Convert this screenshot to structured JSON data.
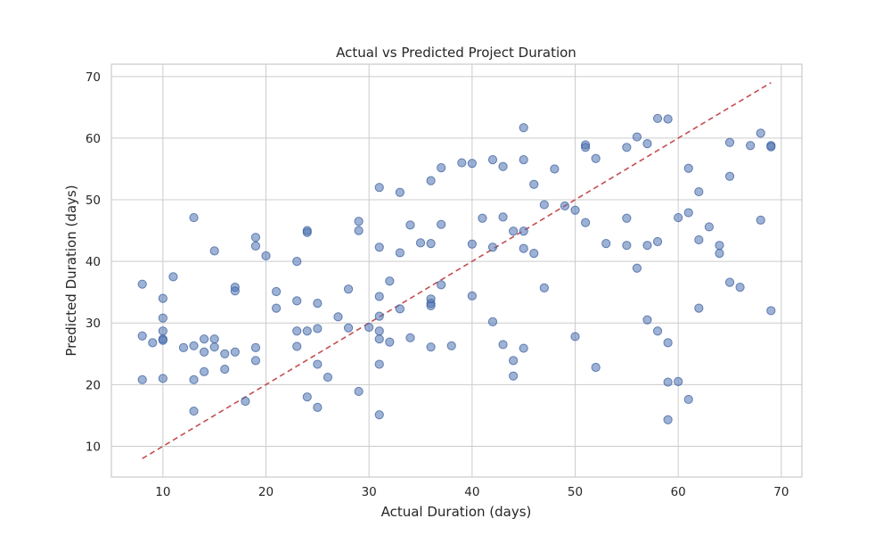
{
  "chart_data": {
    "type": "scatter",
    "title": "Actual vs Predicted Project Duration",
    "xlabel": "Actual Duration (days)",
    "ylabel": "Predicted Duration (days)",
    "xlim": [
      5,
      72
    ],
    "ylim": [
      5,
      72
    ],
    "xticks": [
      10,
      20,
      30,
      40,
      50,
      60,
      70
    ],
    "yticks": [
      10,
      20,
      30,
      40,
      50,
      60,
      70
    ],
    "grid": true,
    "colors": {
      "points": "#4c72b0",
      "reference_line": "#c44e52"
    },
    "reference_line": {
      "x": [
        8,
        69
      ],
      "y": [
        8,
        69
      ]
    },
    "points": [
      [
        8,
        36.3
      ],
      [
        8,
        27.9
      ],
      [
        8,
        20.8
      ],
      [
        9,
        26.8
      ],
      [
        10,
        34.0
      ],
      [
        10,
        30.8
      ],
      [
        10,
        28.7
      ],
      [
        10,
        27.4
      ],
      [
        10,
        27.2
      ],
      [
        10,
        21.0
      ],
      [
        11,
        37.5
      ],
      [
        12,
        26.0
      ],
      [
        13,
        47.1
      ],
      [
        13,
        26.3
      ],
      [
        13,
        20.8
      ],
      [
        13,
        15.7
      ],
      [
        14,
        27.4
      ],
      [
        14,
        25.3
      ],
      [
        14,
        22.1
      ],
      [
        15,
        41.7
      ],
      [
        15,
        27.4
      ],
      [
        15,
        26.1
      ],
      [
        16,
        25.0
      ],
      [
        16,
        22.5
      ],
      [
        17,
        35.8
      ],
      [
        17,
        35.2
      ],
      [
        17,
        25.3
      ],
      [
        18,
        17.3
      ],
      [
        19,
        43.9
      ],
      [
        19,
        42.5
      ],
      [
        19,
        26.0
      ],
      [
        19,
        23.9
      ],
      [
        20,
        40.9
      ],
      [
        21,
        35.1
      ],
      [
        21,
        32.4
      ],
      [
        23,
        40.0
      ],
      [
        23,
        33.6
      ],
      [
        23,
        28.7
      ],
      [
        23,
        26.2
      ],
      [
        24,
        45.0
      ],
      [
        24,
        44.7
      ],
      [
        24,
        28.7
      ],
      [
        24,
        18.0
      ],
      [
        25,
        33.2
      ],
      [
        25,
        29.1
      ],
      [
        25,
        23.3
      ],
      [
        25,
        16.3
      ],
      [
        26,
        21.2
      ],
      [
        27,
        31.0
      ],
      [
        28,
        35.5
      ],
      [
        28,
        29.2
      ],
      [
        29,
        46.5
      ],
      [
        29,
        45.0
      ],
      [
        29,
        18.9
      ],
      [
        30,
        29.3
      ],
      [
        31,
        52.0
      ],
      [
        31,
        42.3
      ],
      [
        31,
        34.3
      ],
      [
        31,
        31.1
      ],
      [
        31,
        28.7
      ],
      [
        31,
        27.4
      ],
      [
        31,
        23.3
      ],
      [
        31,
        15.1
      ],
      [
        32,
        36.8
      ],
      [
        32,
        26.9
      ],
      [
        33,
        51.2
      ],
      [
        33,
        41.4
      ],
      [
        33,
        32.3
      ],
      [
        34,
        45.9
      ],
      [
        34,
        27.6
      ],
      [
        35,
        43.0
      ],
      [
        36,
        53.1
      ],
      [
        36,
        42.9
      ],
      [
        36,
        33.9
      ],
      [
        36,
        33.2
      ],
      [
        36,
        32.8
      ],
      [
        36,
        26.1
      ],
      [
        37,
        55.2
      ],
      [
        37,
        46.0
      ],
      [
        37,
        36.2
      ],
      [
        38,
        26.3
      ],
      [
        39,
        56.0
      ],
      [
        40,
        55.9
      ],
      [
        40,
        42.8
      ],
      [
        40,
        34.4
      ],
      [
        41,
        47.0
      ],
      [
        42,
        56.5
      ],
      [
        42,
        42.3
      ],
      [
        42,
        30.2
      ],
      [
        43,
        55.4
      ],
      [
        43,
        47.2
      ],
      [
        43,
        26.5
      ],
      [
        44,
        44.9
      ],
      [
        44,
        23.9
      ],
      [
        44,
        21.4
      ],
      [
        45,
        61.7
      ],
      [
        45,
        56.5
      ],
      [
        45,
        44.9
      ],
      [
        45,
        42.1
      ],
      [
        45,
        25.9
      ],
      [
        46,
        52.5
      ],
      [
        46,
        41.3
      ],
      [
        47,
        49.2
      ],
      [
        47,
        35.7
      ],
      [
        48,
        55.0
      ],
      [
        49,
        49.0
      ],
      [
        50,
        48.3
      ],
      [
        50,
        27.8
      ],
      [
        51,
        58.9
      ],
      [
        51,
        58.5
      ],
      [
        51,
        46.3
      ],
      [
        52,
        56.7
      ],
      [
        52,
        22.8
      ],
      [
        53,
        42.9
      ],
      [
        55,
        58.5
      ],
      [
        55,
        47.0
      ],
      [
        55,
        42.6
      ],
      [
        56,
        60.2
      ],
      [
        56,
        38.9
      ],
      [
        57,
        59.1
      ],
      [
        57,
        42.6
      ],
      [
        57,
        30.5
      ],
      [
        58,
        63.2
      ],
      [
        58,
        43.2
      ],
      [
        58,
        28.7
      ],
      [
        59,
        63.1
      ],
      [
        59,
        26.8
      ],
      [
        59,
        20.4
      ],
      [
        59,
        14.3
      ],
      [
        60,
        47.1
      ],
      [
        60,
        20.5
      ],
      [
        61,
        55.1
      ],
      [
        61,
        47.9
      ],
      [
        61,
        17.6
      ],
      [
        62,
        51.3
      ],
      [
        62,
        43.5
      ],
      [
        62,
        32.4
      ],
      [
        63,
        45.6
      ],
      [
        64,
        42.6
      ],
      [
        64,
        41.3
      ],
      [
        65,
        59.3
      ],
      [
        65,
        53.8
      ],
      [
        65,
        36.6
      ],
      [
        66,
        35.8
      ],
      [
        67,
        58.8
      ],
      [
        68,
        60.8
      ],
      [
        68,
        46.7
      ],
      [
        69,
        58.8
      ],
      [
        69,
        58.6
      ],
      [
        69,
        32.0
      ]
    ]
  }
}
